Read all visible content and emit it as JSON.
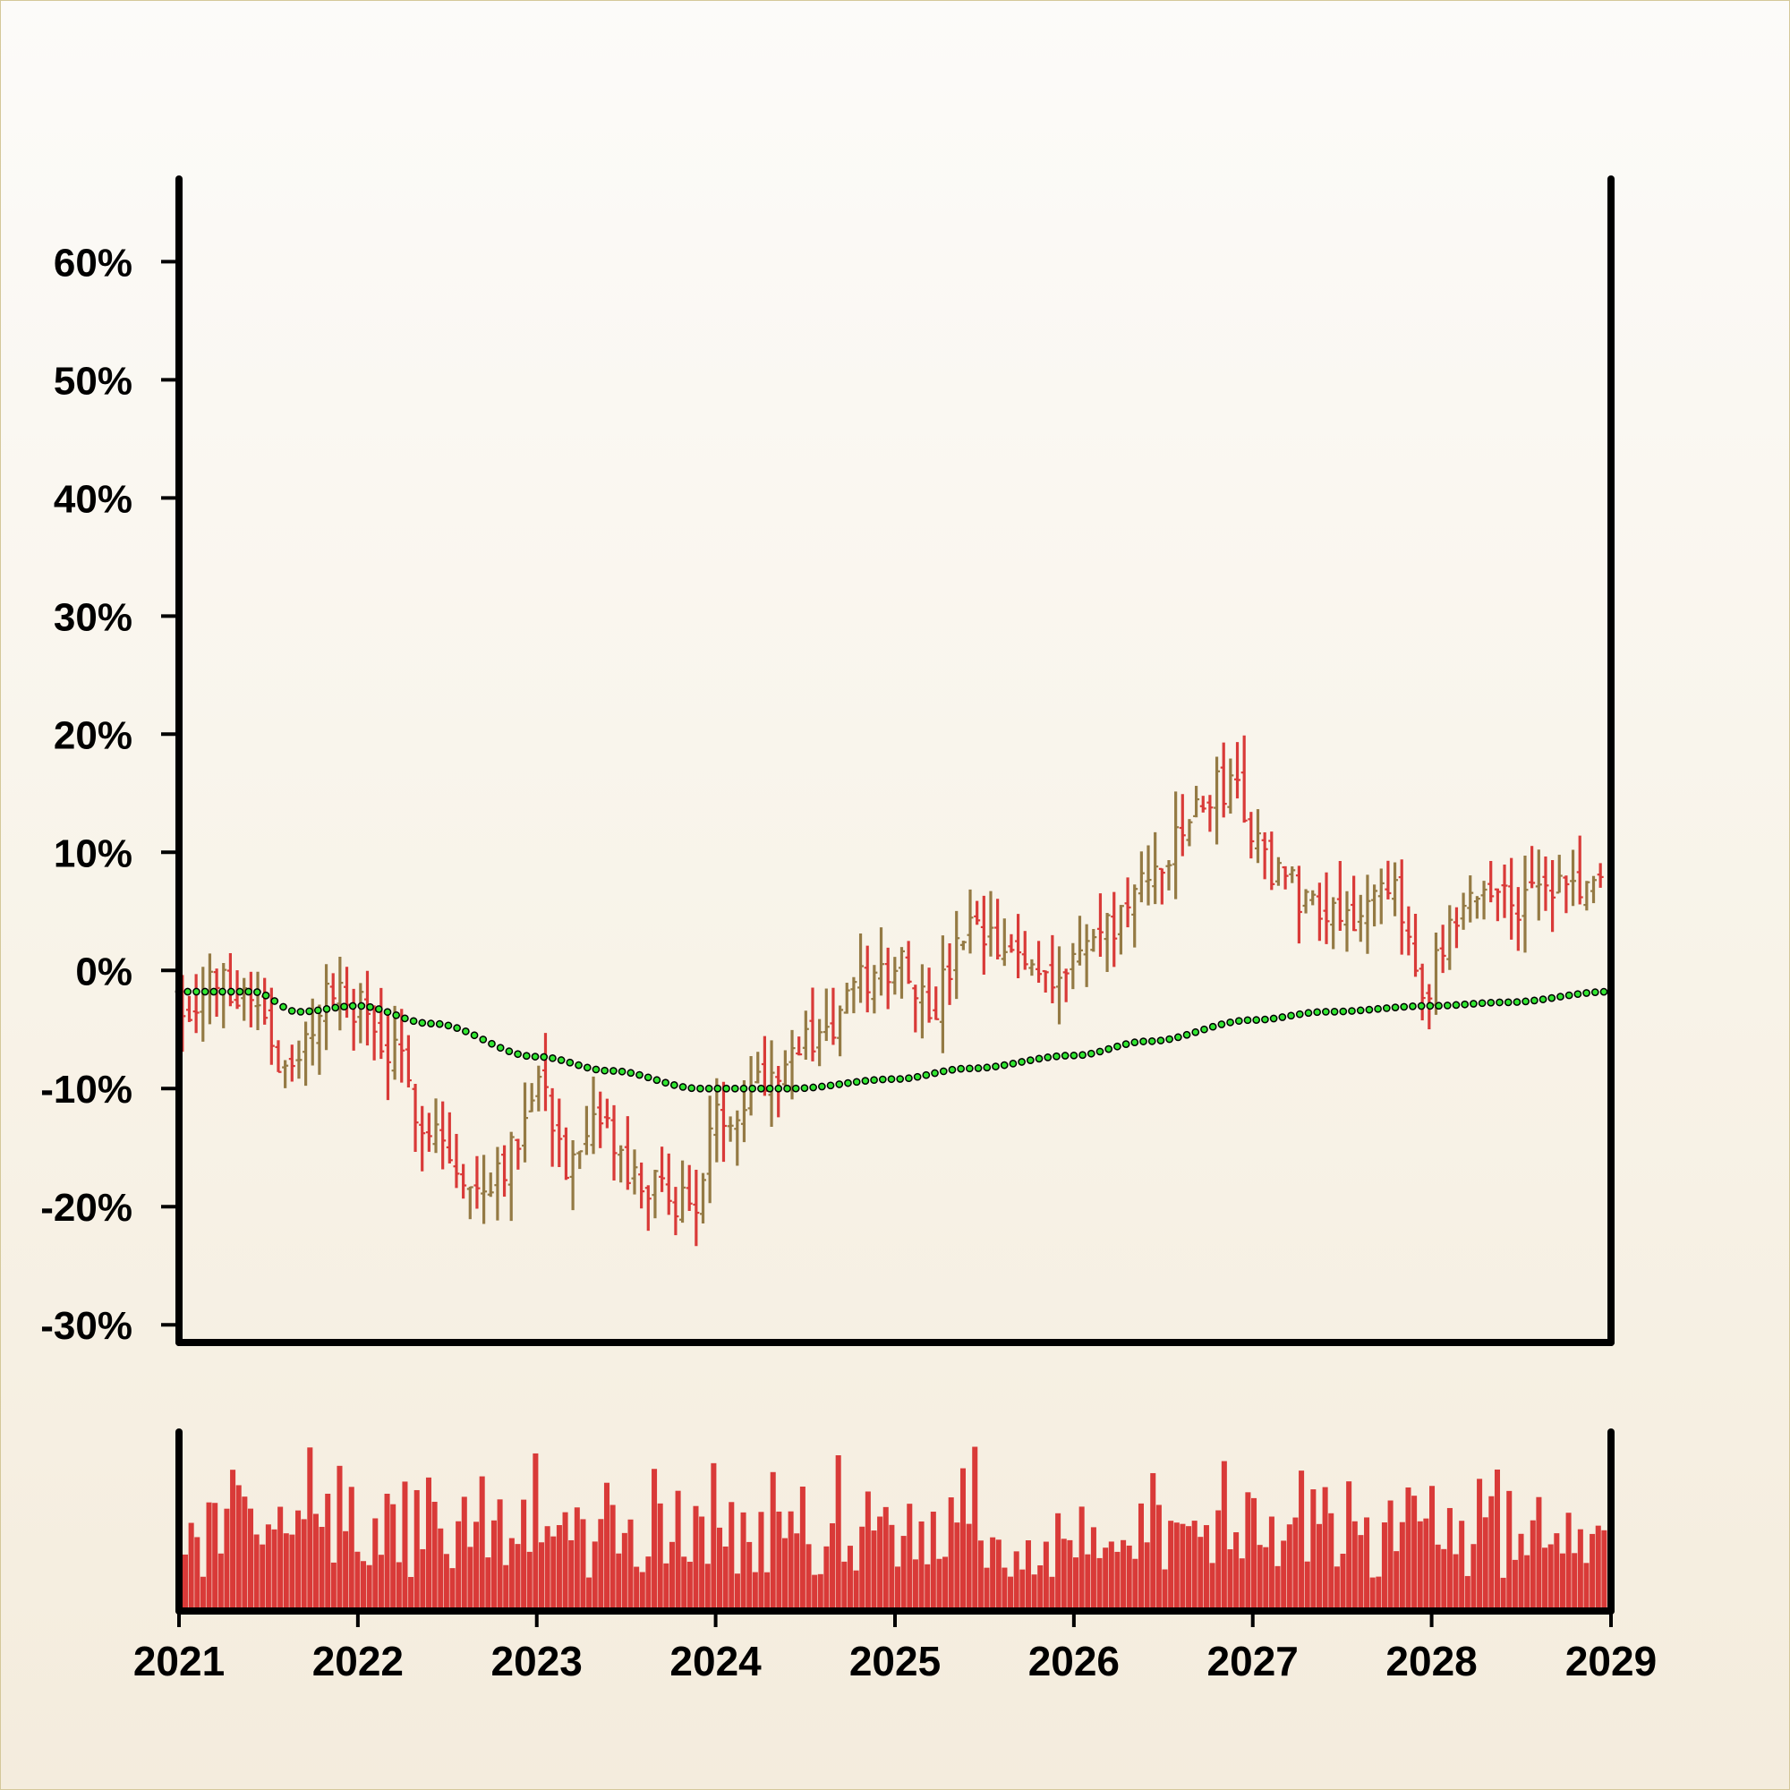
{
  "chart_data": [
    {
      "type": "ohlc",
      "title": "",
      "xlabel": "",
      "ylabel": "",
      "x_range": [
        "2021-01-01",
        "2029-01-01"
      ],
      "ylim": [
        -31.5,
        67
      ],
      "y_ticks": [
        60,
        50,
        40,
        30,
        20,
        10,
        0,
        -10,
        -20,
        -30
      ],
      "y_tick_labels": [
        "60%",
        "50%",
        "40%",
        "30%",
        "20%",
        "10%",
        "0%",
        "-10%",
        "-20%",
        "-30%"
      ],
      "x_tick_labels": [
        "2021",
        "2022",
        "2023",
        "2024",
        "2025",
        "2026",
        "2027",
        "2028",
        "2029"
      ],
      "grid": false,
      "colors": {
        "up": "#947a44",
        "down": "#d93a38",
        "trend": "#32e632",
        "trend_edge": "#000000",
        "volume": "#d93a38",
        "axis": "#000000"
      },
      "close_anchors": [
        [
          "2021-01-01",
          -3
        ],
        [
          "2021-03-15",
          -1
        ],
        [
          "2021-06-01",
          -2
        ],
        [
          "2021-08-15",
          -9
        ],
        [
          "2021-11-01",
          -2
        ],
        [
          "2022-01-01",
          -3
        ],
        [
          "2022-03-01",
          -7
        ],
        [
          "2022-06-01",
          -13
        ],
        [
          "2022-08-15",
          -19
        ],
        [
          "2022-11-01",
          -16
        ],
        [
          "2023-01-01",
          -9
        ],
        [
          "2023-03-15",
          -17
        ],
        [
          "2023-05-15",
          -13
        ],
        [
          "2023-07-15",
          -18
        ],
        [
          "2023-10-01",
          -19
        ],
        [
          "2023-11-15",
          -20
        ],
        [
          "2024-01-01",
          -13
        ],
        [
          "2024-04-01",
          -9
        ],
        [
          "2024-06-01",
          -7
        ],
        [
          "2024-08-15",
          -5
        ],
        [
          "2024-11-01",
          -1
        ],
        [
          "2025-01-15",
          1
        ],
        [
          "2025-03-15",
          -3
        ],
        [
          "2025-06-01",
          3
        ],
        [
          "2025-09-01",
          1
        ],
        [
          "2025-12-01",
          0
        ],
        [
          "2026-03-01",
          3
        ],
        [
          "2026-05-01",
          6
        ],
        [
          "2026-07-15",
          10
        ],
        [
          "2026-09-15",
          14
        ],
        [
          "2026-11-15",
          16
        ],
        [
          "2027-02-01",
          9
        ],
        [
          "2027-05-01",
          6
        ],
        [
          "2027-08-01",
          5
        ],
        [
          "2027-10-15",
          6
        ],
        [
          "2027-12-20",
          -1
        ],
        [
          "2028-02-15",
          3
        ],
        [
          "2028-04-15",
          7
        ],
        [
          "2028-07-01",
          6
        ],
        [
          "2028-10-01",
          7
        ],
        [
          "2028-12-31",
          7
        ]
      ],
      "trend_anchors": [
        [
          "2021-01-01",
          -1.8
        ],
        [
          "2021-06-01",
          -1.8
        ],
        [
          "2021-09-01",
          -3.5
        ],
        [
          "2022-01-01",
          -3
        ],
        [
          "2022-06-01",
          -4.5
        ],
        [
          "2023-01-01",
          -7.3
        ],
        [
          "2023-06-01",
          -8.5
        ],
        [
          "2023-12-01",
          -10
        ],
        [
          "2024-06-01",
          -10
        ],
        [
          "2025-01-01",
          -9.2
        ],
        [
          "2025-06-01",
          -8.3
        ],
        [
          "2026-01-01",
          -7.2
        ],
        [
          "2026-06-01",
          -6
        ],
        [
          "2027-01-01",
          -4.2
        ],
        [
          "2027-06-01",
          -3.5
        ],
        [
          "2028-01-01",
          -3
        ],
        [
          "2028-06-01",
          -2.7
        ],
        [
          "2028-12-31",
          -1.8
        ]
      ],
      "candle_count": 208,
      "wick_range_percent": 6.5
    },
    {
      "type": "bar",
      "title": "",
      "xlabel": "",
      "ylabel": "",
      "ylim": [
        0,
        1
      ],
      "bar_count": 240,
      "value_range": [
        0.05,
        1.0
      ]
    }
  ]
}
